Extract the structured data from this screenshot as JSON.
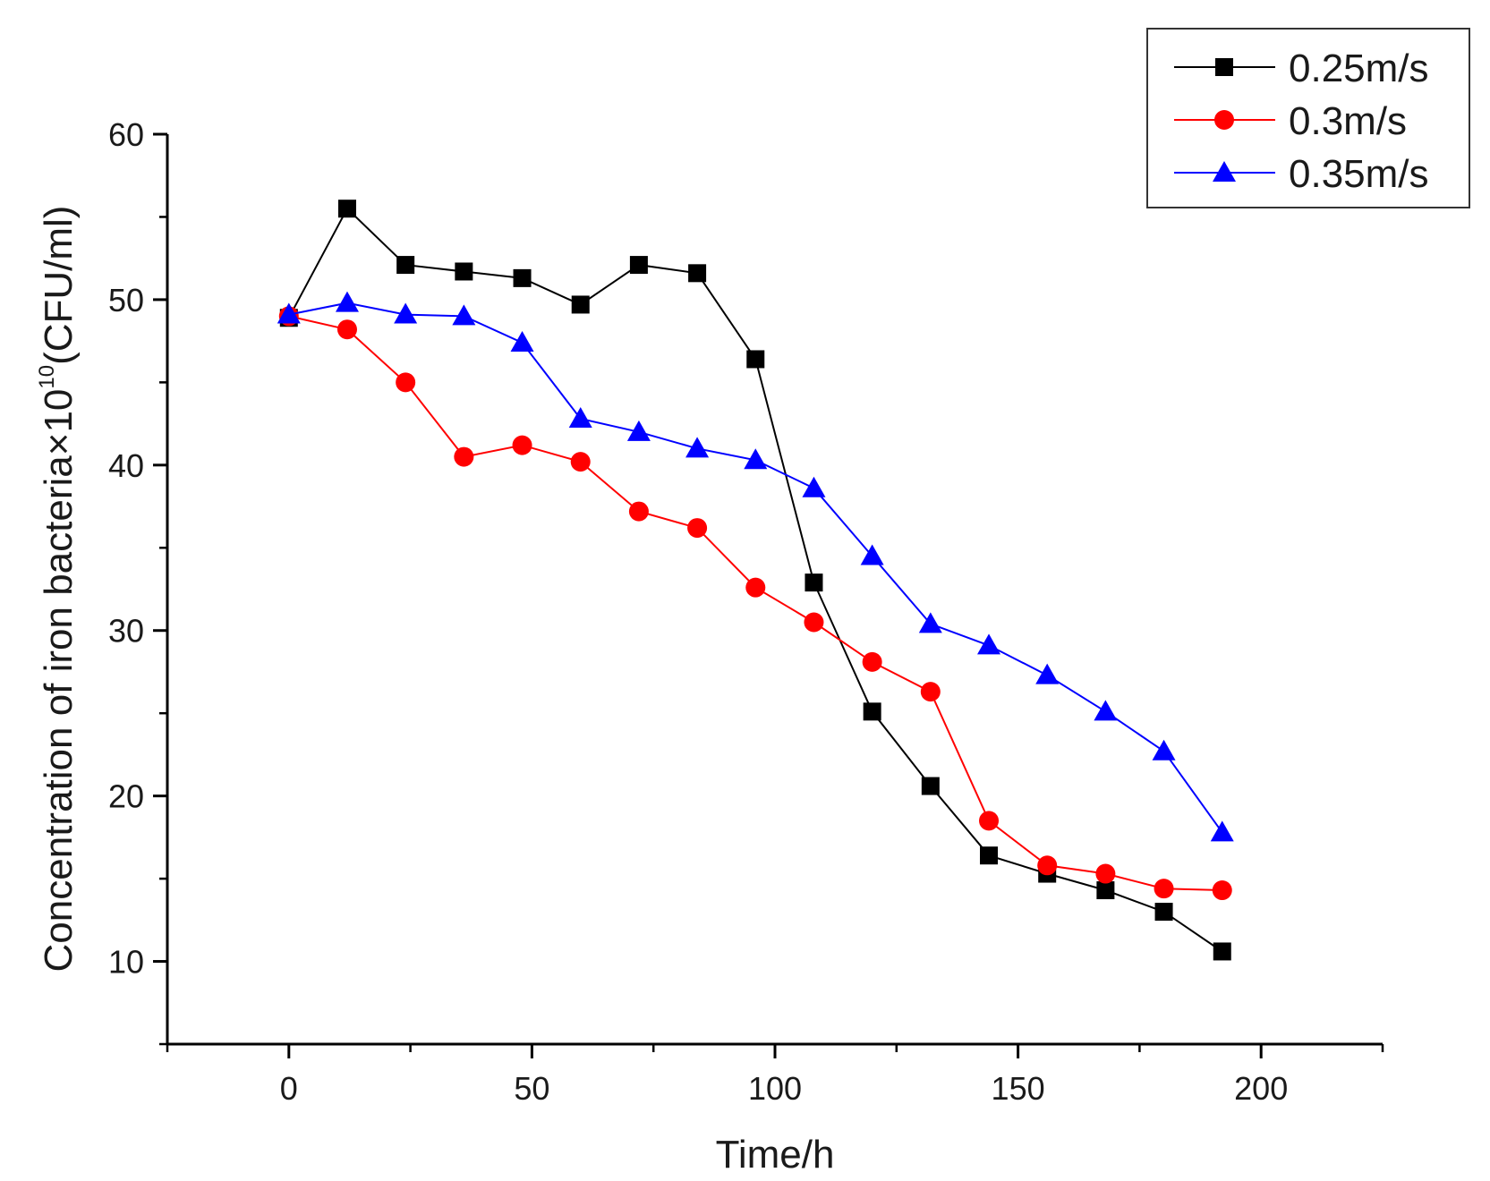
{
  "chart_data": {
    "type": "line",
    "title": "",
    "xlabel": "Time/h",
    "ylabel": {
      "prefix": "Concentration of iron bacteria×10",
      "exponent": "10",
      "suffix": "(CFU/ml)"
    },
    "xlim": [
      -25,
      225
    ],
    "ylim": [
      5,
      60
    ],
    "x_ticks": [
      0,
      50,
      100,
      150,
      200
    ],
    "x_minor_ticks": [
      -25,
      25,
      75,
      125,
      175,
      225
    ],
    "y_ticks": [
      10,
      20,
      30,
      40,
      50,
      60
    ],
    "y_minor_ticks": [
      5,
      15,
      25,
      35,
      45,
      55
    ],
    "grid": false,
    "legend_position": "top-right",
    "x": [
      0,
      12,
      24,
      36,
      48,
      60,
      72,
      84,
      96,
      108,
      120,
      132,
      144,
      156,
      168,
      180,
      192
    ],
    "series": [
      {
        "name": "0.25m/s",
        "color": "#000000",
        "marker": "square",
        "values": [
          48.9,
          55.5,
          52.1,
          51.7,
          51.3,
          49.7,
          52.1,
          51.6,
          46.4,
          32.9,
          25.1,
          20.6,
          16.4,
          15.3,
          14.3,
          13.0,
          10.6
        ]
      },
      {
        "name": "0.3m/s",
        "color": "#ff0000",
        "marker": "circle",
        "values": [
          49.0,
          48.2,
          45.0,
          40.5,
          41.2,
          40.2,
          37.2,
          36.2,
          32.6,
          30.5,
          28.1,
          26.3,
          18.5,
          15.8,
          15.3,
          14.4,
          14.3
        ]
      },
      {
        "name": "0.35m/s",
        "color": "#0000ff",
        "marker": "triangle",
        "values": [
          49.1,
          49.8,
          49.1,
          49.0,
          47.4,
          42.8,
          42.0,
          41.0,
          40.3,
          38.6,
          34.5,
          30.4,
          29.1,
          27.3,
          25.1,
          22.7,
          17.8
        ]
      }
    ]
  }
}
